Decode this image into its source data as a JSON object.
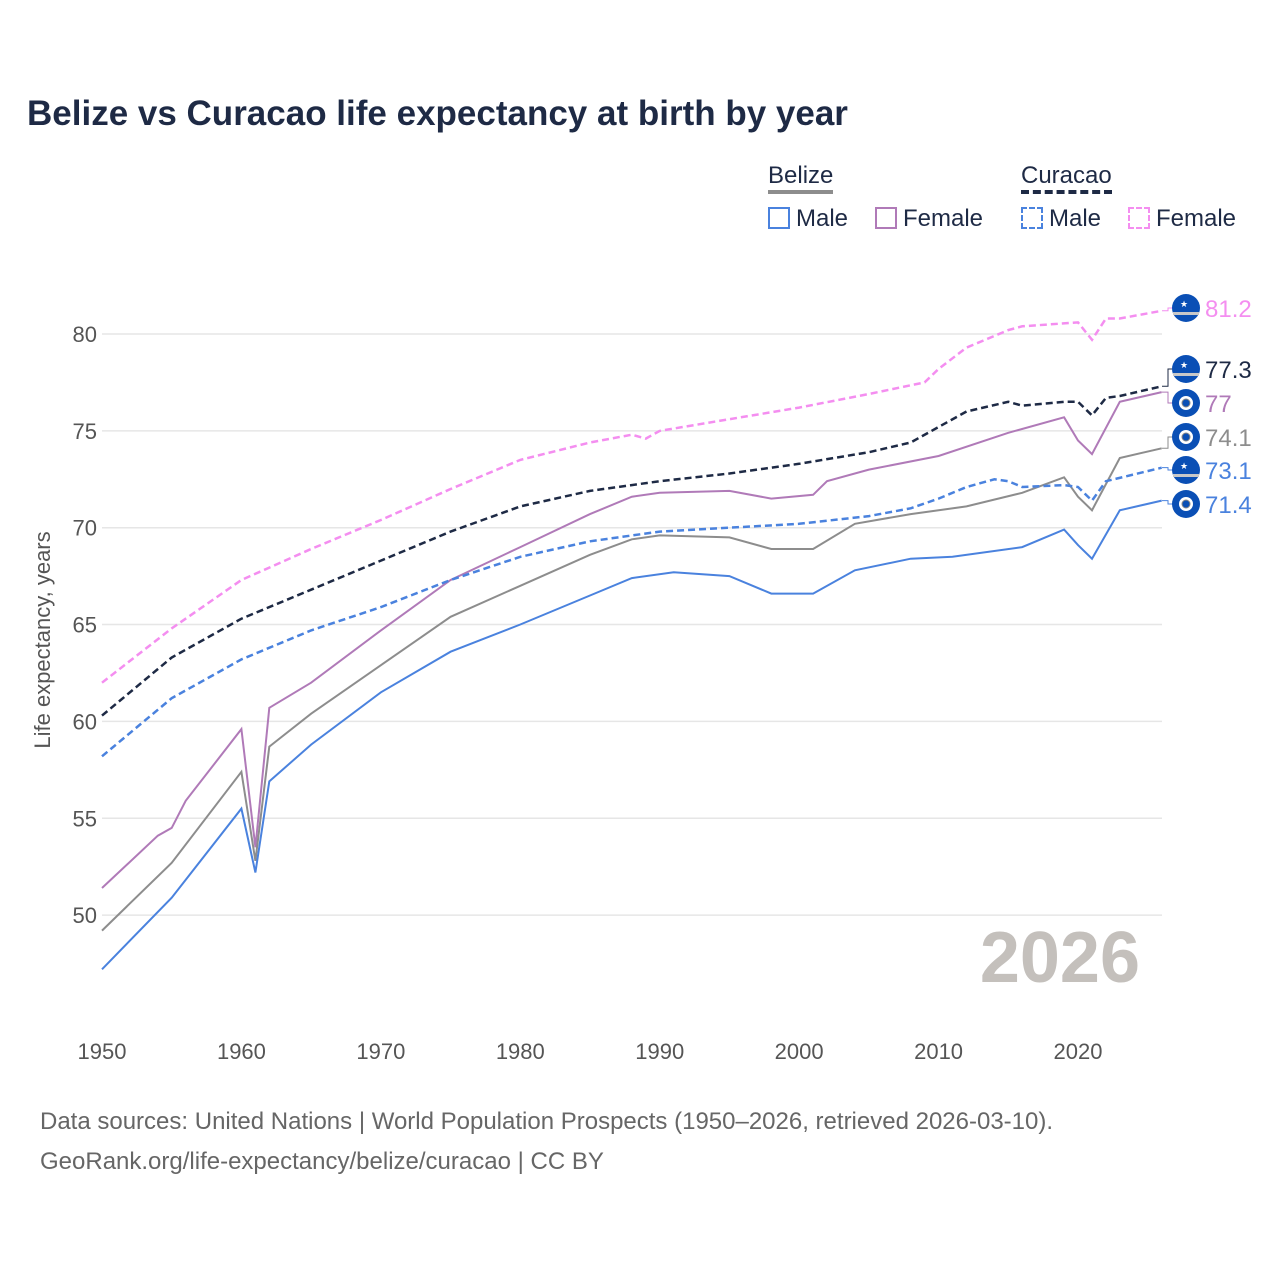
{
  "title": "Belize vs Curacao life expectancy at birth by year",
  "legend": {
    "group1": "Belize",
    "group2": "Curacao",
    "male": "Male",
    "female": "Female"
  },
  "footer": {
    "line1": "Data sources: United Nations | World Population Prospects (1950–2026, retrieved 2026-03-10).",
    "line2": "GeoRank.org/life-expectancy/belize/curacao | CC BY"
  },
  "year_watermark": "2026",
  "chart_data": {
    "type": "line",
    "title": "Belize vs Curacao life expectancy at birth by year",
    "xlabel": "",
    "ylabel": "Life expectancy, years",
    "xlim": [
      1950,
      2026
    ],
    "ylim": [
      45,
      83
    ],
    "xticks": [
      1950,
      1960,
      1970,
      1980,
      1990,
      2000,
      2010,
      2020
    ],
    "yticks": [
      50,
      55,
      60,
      65,
      70,
      75,
      80
    ],
    "grid": true,
    "legend_position": "top-right",
    "series": [
      {
        "name": "Curacao Female",
        "color": "#f48ef0",
        "dashed": true,
        "flag": "curacao",
        "end_label": "81.2",
        "x": [
          1950,
          1955,
          1960,
          1965,
          1970,
          1975,
          1980,
          1985,
          1988,
          1989,
          1990,
          1995,
          2000,
          2005,
          2009,
          2010,
          2012,
          2015,
          2016,
          2020,
          2021,
          2022,
          2023,
          2026
        ],
        "y": [
          62.0,
          64.8,
          67.3,
          68.9,
          70.4,
          72.0,
          73.5,
          74.4,
          74.8,
          74.6,
          75.0,
          75.6,
          76.2,
          76.9,
          77.5,
          78.2,
          79.3,
          80.2,
          80.4,
          80.6,
          79.7,
          80.8,
          80.8,
          81.2
        ]
      },
      {
        "name": "Curacao",
        "color": "#1e2a45",
        "dashed": true,
        "flag": "curacao",
        "end_label": "77.3",
        "x": [
          1950,
          1955,
          1960,
          1965,
          1970,
          1975,
          1980,
          1985,
          1990,
          1995,
          2000,
          2005,
          2008,
          2010,
          2012,
          2015,
          2016,
          2019,
          2020,
          2021,
          2022,
          2023,
          2026
        ],
        "y": [
          60.3,
          63.3,
          65.3,
          66.8,
          68.3,
          69.8,
          71.1,
          71.9,
          72.4,
          72.8,
          73.3,
          73.9,
          74.4,
          75.2,
          76.0,
          76.5,
          76.3,
          76.5,
          76.5,
          75.8,
          76.7,
          76.8,
          77.3
        ]
      },
      {
        "name": "Belize Female",
        "color": "#b07ab8",
        "dashed": false,
        "flag": "belize",
        "end_label": "77",
        "x": [
          1950,
          1954,
          1955,
          1956,
          1960,
          1961,
          1962,
          1965,
          1970,
          1975,
          1980,
          1985,
          1988,
          1990,
          1995,
          1998,
          2001,
          2002,
          2005,
          2010,
          2015,
          2019,
          2020,
          2021,
          2023,
          2026
        ],
        "y": [
          51.4,
          54.1,
          54.5,
          55.9,
          59.6,
          53.5,
          60.7,
          62.0,
          64.7,
          67.3,
          69.0,
          70.7,
          71.6,
          71.8,
          71.9,
          71.5,
          71.7,
          72.4,
          73.0,
          73.7,
          74.9,
          75.7,
          74.5,
          73.8,
          76.5,
          77.0
        ]
      },
      {
        "name": "Belize",
        "color": "#8d8d8d",
        "dashed": false,
        "flag": "belize",
        "end_label": "74.1",
        "x": [
          1950,
          1955,
          1960,
          1961,
          1962,
          1965,
          1970,
          1975,
          1980,
          1985,
          1988,
          1990,
          1995,
          1998,
          2001,
          2004,
          2008,
          2012,
          2016,
          2019,
          2020,
          2021,
          2023,
          2026
        ],
        "y": [
          49.2,
          52.7,
          57.4,
          52.8,
          58.7,
          60.4,
          62.9,
          65.4,
          67.0,
          68.6,
          69.4,
          69.6,
          69.5,
          68.9,
          68.9,
          70.2,
          70.7,
          71.1,
          71.8,
          72.6,
          71.6,
          70.9,
          73.6,
          74.1
        ]
      },
      {
        "name": "Curacao Male",
        "color": "#4a82de",
        "dashed": true,
        "flag": "curacao",
        "end_label": "73.1",
        "x": [
          1950,
          1955,
          1960,
          1965,
          1970,
          1975,
          1980,
          1985,
          1990,
          1995,
          2000,
          2005,
          2008,
          2010,
          2012,
          2014,
          2015,
          2016,
          2019,
          2020,
          2021,
          2022,
          2026
        ],
        "y": [
          58.2,
          61.2,
          63.2,
          64.7,
          65.9,
          67.3,
          68.5,
          69.3,
          69.8,
          70.0,
          70.2,
          70.6,
          71.0,
          71.5,
          72.1,
          72.5,
          72.4,
          72.1,
          72.2,
          72.1,
          71.4,
          72.4,
          73.1
        ]
      },
      {
        "name": "Belize Male",
        "color": "#4a82de",
        "dashed": false,
        "flag": "belize",
        "end_label": "71.4",
        "x": [
          1950,
          1955,
          1960,
          1961,
          1962,
          1965,
          1970,
          1975,
          1980,
          1985,
          1988,
          1991,
          1995,
          1998,
          2001,
          2004,
          2008,
          2011,
          2016,
          2019,
          2020,
          2021,
          2023,
          2026
        ],
        "y": [
          47.2,
          50.9,
          55.5,
          52.2,
          56.9,
          58.8,
          61.5,
          63.6,
          65.0,
          66.5,
          67.4,
          67.7,
          67.5,
          66.6,
          66.6,
          67.8,
          68.4,
          68.5,
          69.0,
          69.9,
          69.1,
          68.4,
          70.9,
          71.4
        ]
      }
    ]
  }
}
